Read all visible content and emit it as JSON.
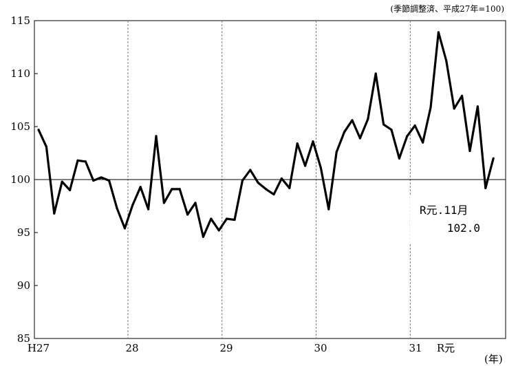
{
  "chart_data": {
    "type": "line",
    "title": "",
    "note": "(季節調整済、平成27年=100)",
    "xlabel": "",
    "x_unit": "(年)",
    "ylabel": "",
    "ylim": [
      85,
      115
    ],
    "yticks": [
      "85",
      "90",
      "95",
      "100",
      "105",
      "110",
      "115"
    ],
    "reference_line": 100,
    "grid": "vertical dashed lines at year boundaries",
    "x_year_labels": [
      "H27",
      "28",
      "29",
      "30",
      "31",
      "R元"
    ],
    "x": [
      "H27.1",
      "H27.2",
      "H27.3",
      "H27.4",
      "H27.5",
      "H27.6",
      "H27.7",
      "H27.8",
      "H27.9",
      "H27.10",
      "H27.11",
      "H27.12",
      "H28.1",
      "H28.2",
      "H28.3",
      "H28.4",
      "H28.5",
      "H28.6",
      "H28.7",
      "H28.8",
      "H28.9",
      "H28.10",
      "H28.11",
      "H28.12",
      "H29.1",
      "H29.2",
      "H29.3",
      "H29.4",
      "H29.5",
      "H29.6",
      "H29.7",
      "H29.8",
      "H29.9",
      "H29.10",
      "H29.11",
      "H29.12",
      "H30.1",
      "H30.2",
      "H30.3",
      "H30.4",
      "H30.5",
      "H30.6",
      "H30.7",
      "H30.8",
      "H30.9",
      "H30.10",
      "H30.11",
      "H30.12",
      "H31.1",
      "H31.2",
      "H31.3",
      "H31.4",
      "R1.5",
      "R1.6",
      "R1.7",
      "R1.8",
      "R1.9",
      "R1.10",
      "R1.11"
    ],
    "series": [
      {
        "values": [
          104.7,
          103.1,
          96.8,
          99.8,
          99.0,
          101.8,
          101.7,
          99.9,
          100.2,
          99.9,
          97.3,
          95.4,
          97.6,
          99.3,
          97.2,
          104.1,
          97.8,
          99.1,
          99.1,
          96.7,
          97.8,
          94.6,
          96.3,
          95.2,
          96.3,
          96.2,
          99.9,
          100.9,
          99.7,
          99.1,
          98.6,
          100.1,
          99.2,
          103.4,
          101.3,
          103.6,
          101.1,
          97.2,
          102.6,
          104.5,
          105.6,
          103.9,
          105.7,
          110.0,
          105.2,
          104.7,
          102.0,
          104.1,
          105.1,
          103.5,
          106.8,
          113.9,
          111.2,
          106.7,
          107.9,
          102.7,
          106.9,
          99.2,
          102.0
        ],
        "color": "#000000"
      }
    ],
    "annotation": {
      "line1": "R元.11月",
      "line2": "102.0"
    }
  }
}
